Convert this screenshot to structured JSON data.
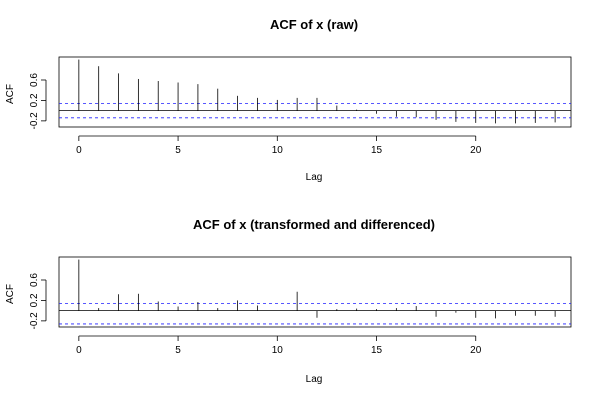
{
  "chart_data": [
    {
      "type": "bar",
      "title": "ACF of x (raw)",
      "xlabel": "Lag",
      "ylabel": "ACF",
      "xlim": [
        -1,
        24.8
      ],
      "ylim": [
        -0.32,
        1.05
      ],
      "x_ticks": [
        "0",
        "5",
        "10",
        "15",
        "20"
      ],
      "y_ticks": [
        "-0.2",
        "0.2",
        "0.6"
      ],
      "conf_band": [
        0.14,
        -0.14
      ],
      "lags": [
        0,
        1,
        2,
        3,
        4,
        5,
        6,
        7,
        8,
        9,
        10,
        11,
        12,
        13,
        14,
        15,
        16,
        17,
        18,
        19,
        20,
        21,
        22,
        23,
        24
      ],
      "values": [
        1.0,
        0.87,
        0.73,
        0.62,
        0.58,
        0.55,
        0.52,
        0.43,
        0.29,
        0.25,
        0.21,
        0.25,
        0.25,
        0.1,
        0.02,
        -0.06,
        -0.12,
        -0.13,
        -0.18,
        -0.22,
        -0.24,
        -0.25,
        -0.25,
        -0.24,
        -0.23
      ],
      "grid": false
    },
    {
      "type": "bar",
      "title": "ACF of x (transformed and differenced)",
      "xlabel": "Lag",
      "ylabel": "ACF",
      "xlim": [
        -1,
        24.8
      ],
      "ylim": [
        -0.32,
        1.05
      ],
      "x_ticks": [
        "0",
        "5",
        "10",
        "15",
        "20"
      ],
      "y_ticks": [
        "-0.2",
        "0.2",
        "0.6"
      ],
      "conf_band": [
        0.14,
        -0.26
      ],
      "lags": [
        0,
        1,
        2,
        3,
        4,
        5,
        6,
        7,
        8,
        9,
        10,
        11,
        12,
        13,
        14,
        15,
        16,
        17,
        18,
        19,
        20,
        21,
        22,
        23,
        24
      ],
      "values": [
        1.0,
        0.05,
        0.32,
        0.33,
        0.18,
        0.08,
        0.17,
        0.05,
        0.2,
        0.1,
        0.0,
        0.37,
        -0.14,
        0.03,
        0.04,
        0.03,
        0.05,
        0.09,
        -0.12,
        -0.04,
        -0.14,
        -0.15,
        -0.1,
        -0.1,
        -0.12
      ],
      "grid": false
    }
  ]
}
